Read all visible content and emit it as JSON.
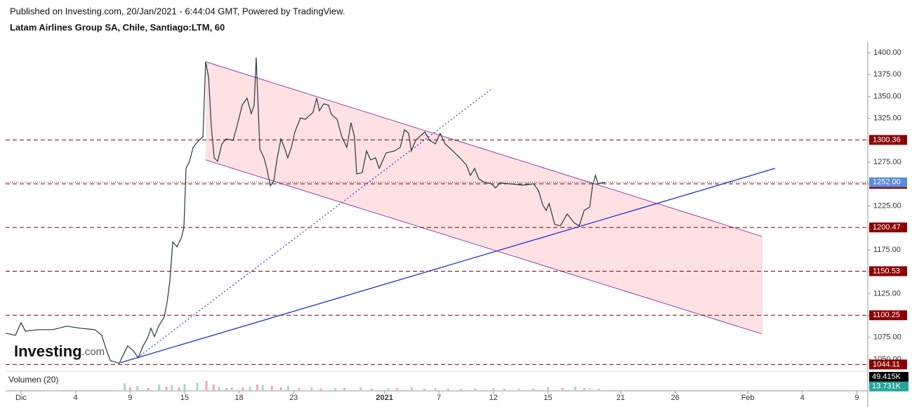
{
  "header": {
    "published": "Published on Investing.com, 20/Jan/2021 - 6:44:04 GMT, Powered by TradingView.",
    "symbol": "Latam Airlines Group SA, Chile, Santiago:LTM, 60",
    "logo": "Investing",
    "logo_suffix": ".com"
  },
  "chart_data": [
    {
      "type": "line",
      "color": "#1e3d3a",
      "x": [
        -0.85,
        -0.31,
        0,
        0.23,
        0.97,
        1.74,
        2.51,
        3.28,
        4.06,
        4.44,
        4.71,
        4.91,
        5.41,
        5.64,
        5.87,
        6.18,
        6.45,
        6.68,
        6.96,
        7.15,
        7.34,
        7.57,
        7.88,
        8.04,
        8.19,
        8.35,
        8.58,
        8.81,
        8.96,
        9.08,
        9.27,
        9.47,
        9.78,
        10.01,
        10.16,
        10.32,
        10.47,
        10.63,
        10.82,
        11.05,
        11.28,
        11.67,
        11.9,
        12.17,
        12.44,
        12.67,
        12.83,
        12.94,
        13.14,
        13.37,
        13.52,
        13.72,
        13.91,
        14.1,
        14.3,
        14.49,
        14.68,
        14.88,
        15.07,
        15.38,
        15.65,
        16.07,
        16.27,
        16.42,
        16.65,
        16.92,
        17.08,
        17.39,
        17.66,
        17.93,
        18.16,
        18.35,
        18.47,
        18.78,
        19.01,
        19.24,
        19.51,
        19.71,
        20.09,
        20.56,
        20.87,
        21.1,
        21.33,
        21.48,
        21.72,
        22.22,
        22.49,
        22.8,
        23.07,
        23.34,
        23.76,
        24.15,
        24.5,
        24.73,
        24.96,
        25.19,
        25.5,
        25.89,
        26.12,
        26.35,
        26.86,
        27.63,
        28.21,
        28.48,
        28.71,
        28.9,
        29.06,
        29.37,
        29.68,
        30.06,
        30.45,
        30.72,
        30.99,
        31.3,
        31.45,
        31.61,
        31.76,
        32.15
      ],
      "values": [
        1079.8,
        1077.4,
        1091.8,
        1082.2,
        1083.8,
        1083.8,
        1087.8,
        1085.4,
        1083.8,
        1077.4,
        1059.8,
        1048.6,
        1045.4,
        1055.8,
        1065.4,
        1059.8,
        1051.8,
        1063.8,
        1074.2,
        1085.4,
        1075.8,
        1087.8,
        1098.2,
        1115.8,
        1139.8,
        1183.9,
        1178.3,
        1187.9,
        1199.9,
        1267.9,
        1275.9,
        1291.9,
        1299.9,
        1303.9,
        1389.6,
        1372.0,
        1315.9,
        1279.9,
        1275.9,
        1295.9,
        1301.5,
        1299.9,
        1317.5,
        1340.0,
        1348.0,
        1330.4,
        1340.0,
        1394.4,
        1290.3,
        1279.9,
        1267.9,
        1247.9,
        1253.5,
        1279.9,
        1301.5,
        1291.9,
        1279.9,
        1291.9,
        1309.5,
        1325.6,
        1324.0,
        1332.0,
        1348.0,
        1333.6,
        1341.6,
        1340.0,
        1329.6,
        1324.0,
        1303.9,
        1291.9,
        1320.0,
        1303.9,
        1261.5,
        1263.1,
        1287.9,
        1277.5,
        1279.9,
        1267.9,
        1285.5,
        1287.9,
        1291.9,
        1311.9,
        1307.9,
        1287.9,
        1299.9,
        1309.5,
        1299.9,
        1295.9,
        1307.9,
        1295.9,
        1287.9,
        1279.9,
        1271.9,
        1259.9,
        1267.9,
        1255.9,
        1251.9,
        1250.3,
        1245.5,
        1251.1,
        1250.3,
        1248.7,
        1250.3,
        1242.3,
        1226.3,
        1219.9,
        1227.9,
        1203.9,
        1202.3,
        1215.9,
        1205.5,
        1202.3,
        1219.9,
        1223.9,
        1247.9,
        1259.9,
        1250.3,
        1251.9
      ],
      "xlim": [
        -0.85,
        46.6
      ],
      "ylim": [
        1038,
        1412
      ],
      "xticks": [
        {
          "value": 0,
          "label": "Dic"
        },
        {
          "value": 3,
          "label": "4"
        },
        {
          "value": 6,
          "label": "9"
        },
        {
          "value": 9,
          "label": "15"
        },
        {
          "value": 12,
          "label": "18"
        },
        {
          "value": 15,
          "label": "23"
        },
        {
          "value": 20,
          "label": "2021"
        },
        {
          "value": 23,
          "label": "7"
        },
        {
          "value": 26,
          "label": "12"
        },
        {
          "value": 29,
          "label": "15"
        },
        {
          "value": 33,
          "label": "21"
        },
        {
          "value": 36,
          "label": "26"
        },
        {
          "value": 40,
          "label": "Feb"
        },
        {
          "value": 43,
          "label": "4"
        },
        {
          "value": 46,
          "label": "9"
        }
      ],
      "yticks": [
        {
          "value": 1050,
          "label": "1050.00"
        },
        {
          "value": 1075,
          "label": "1075.00"
        },
        {
          "value": 1100,
          "label": "1100.00"
        },
        {
          "value": 1125,
          "label": "1125.00"
        },
        {
          "value": 1150,
          "label": "1150.00"
        },
        {
          "value": 1175,
          "label": "1175.00"
        },
        {
          "value": 1200,
          "label": "1200.00"
        },
        {
          "value": 1225,
          "label": "1225.00"
        },
        {
          "value": 1250,
          "label": "1250.00"
        },
        {
          "value": 1275,
          "label": "1275.00"
        },
        {
          "value": 1300,
          "label": "1300.00"
        },
        {
          "value": 1325,
          "label": "1325.00"
        },
        {
          "value": 1350,
          "label": "1350.00"
        },
        {
          "value": 1375,
          "label": "1375.00"
        },
        {
          "value": 1400,
          "label": "1400.00"
        }
      ],
      "levels": [
        1300.36,
        1250.26,
        1200.47,
        1150.53,
        1100.25,
        1044.11
      ],
      "level_color": "#8b0000",
      "last": {
        "value": 1252,
        "label": "1252.00"
      },
      "last_color": "#5b8bd9",
      "channel": {
        "x": [
          10.16,
          40.77
        ],
        "upper": [
          1389.6,
          1190.3
        ],
        "lower": [
          1277.5,
          1079.0
        ],
        "color": "#8e44ad",
        "fill": "#ffe1e4"
      },
      "trendline": {
        "x": [
          5.49,
          41.5
        ],
        "values": [
          1046.2,
          1267.9
        ],
        "color": "#1f2fd6"
      },
      "ray": {
        "x": [
          6.41,
          25.89
        ],
        "values": [
          1051.8,
          1358.4
        ],
        "color": "#3a3ae0"
      }
    },
    {
      "type": "bar",
      "title": "Volumen (20)",
      "xlim": [
        -0.85,
        46.6
      ],
      "ylim": [
        0,
        67620
      ],
      "series": [
        {
          "color": "#a3dcc3",
          "x": [
            5.7,
            6.4,
            7.6,
            8.3,
            9.0,
            9.7,
            10.9,
            11.6,
            12.6,
            13.3,
            14.7,
            16.0,
            17.3,
            18.7,
            20.2,
            21.5,
            22.8,
            24.2,
            26.0,
            27.4,
            29.0,
            30.5,
            31.3
          ],
          "values": [
            26000,
            15600,
            20800,
            18200,
            23400,
            28600,
            13000,
            10400,
            13000,
            18200,
            15600,
            10400,
            7800,
            10400,
            7800,
            10400,
            7800,
            5200,
            7800,
            5200,
            10400,
            13000,
            7800
          ]
        },
        {
          "color": "#f4a6a6",
          "x": [
            6.0,
            7.0,
            8.0,
            8.7,
            10.2,
            10.6,
            11.3,
            12.2,
            13.0,
            13.8,
            14.3,
            15.3,
            16.5,
            17.8,
            19.3,
            20.7,
            22.2,
            23.5,
            25.0,
            26.6,
            28.2,
            29.8,
            31.0,
            31.8
          ],
          "values": [
            10400,
            7800,
            13000,
            10400,
            33800,
            20800,
            7800,
            10400,
            20800,
            15600,
            10400,
            7800,
            5200,
            7800,
            5200,
            7800,
            5200,
            5200,
            5200,
            5200,
            5200,
            7800,
            7800,
            5200
          ]
        }
      ],
      "markers": [
        {
          "value": 49415,
          "label": "49.415K",
          "color": "#000000"
        },
        {
          "value": 13731,
          "label": "13.731K",
          "color": "#26a69a"
        }
      ]
    }
  ]
}
